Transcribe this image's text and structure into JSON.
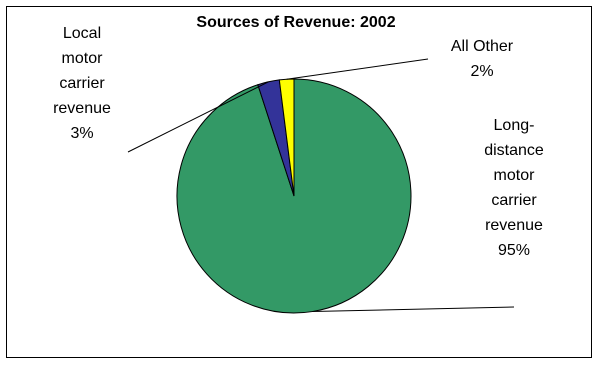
{
  "chart_data": {
    "type": "pie",
    "title": "Sources of Revenue: 2002",
    "slices": [
      {
        "name": "Long-distance motor carrier revenue",
        "value": 95,
        "label_lines": [
          "Long-",
          "distance",
          "motor",
          "carrier",
          "revenue"
        ],
        "pct_label": "95%",
        "color": "#339966"
      },
      {
        "name": "Local motor carrier revenue",
        "value": 3,
        "label_lines": [
          "Local",
          "motor",
          "carrier",
          "revenue"
        ],
        "pct_label": "3%",
        "color": "#333399"
      },
      {
        "name": "All Other",
        "value": 2,
        "label_lines": [
          "All Other"
        ],
        "pct_label": "2%",
        "color": "#ffff00"
      }
    ],
    "legend": "none"
  }
}
